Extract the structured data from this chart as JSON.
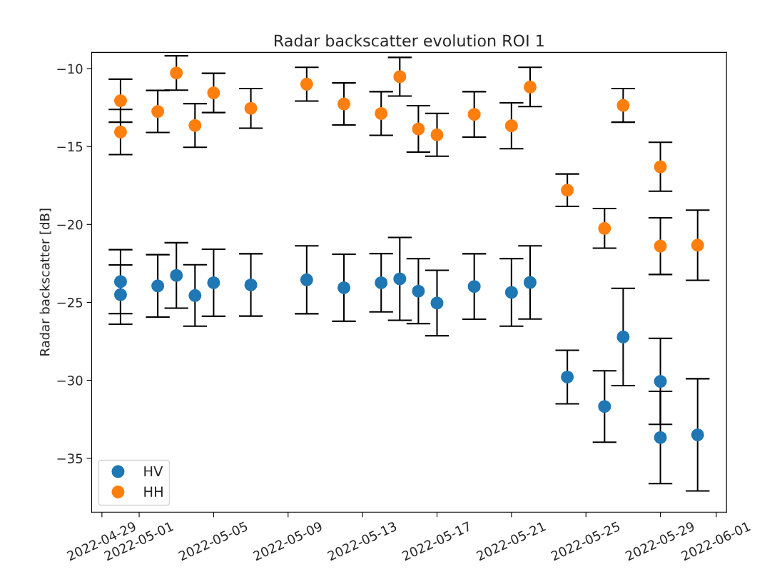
{
  "chart_data": {
    "type": "scatter",
    "title": "Radar backscatter evolution ROI 1",
    "ylabel": "Radar backscatter [dB]",
    "x": [
      "2022-04-30",
      "2022-04-30",
      "2022-05-02",
      "2022-05-03",
      "2022-05-04",
      "2022-05-05",
      "2022-05-07",
      "2022-05-10",
      "2022-05-12",
      "2022-05-14",
      "2022-05-15",
      "2022-05-16",
      "2022-05-17",
      "2022-05-19",
      "2022-05-21",
      "2022-05-22",
      "2022-05-24",
      "2022-05-26",
      "2022-05-27",
      "2022-05-29",
      "2022-05-29",
      "2022-05-31"
    ],
    "series": [
      {
        "name": "HV",
        "color": "#1f77b4",
        "values": [
          -23.67,
          -24.5,
          -23.94,
          -23.27,
          -24.56,
          -23.74,
          -23.88,
          -23.55,
          -24.06,
          -23.74,
          -23.49,
          -24.28,
          -25.04,
          -23.98,
          -24.36,
          -23.72,
          -29.79,
          -31.68,
          -27.22,
          -30.07,
          -33.67,
          -33.5
        ],
        "errors": [
          2.05,
          1.9,
          2.0,
          2.1,
          1.97,
          2.15,
          2.0,
          2.18,
          2.15,
          1.87,
          2.66,
          2.08,
          2.1,
          2.1,
          2.17,
          2.35,
          1.72,
          2.29,
          3.12,
          2.76,
          2.96,
          3.6
        ]
      },
      {
        "name": "HH",
        "color": "#ff7f0e",
        "values": [
          -12.06,
          -14.07,
          -12.75,
          -10.28,
          -13.65,
          -11.56,
          -12.55,
          -11.0,
          -12.27,
          -12.88,
          -10.52,
          -13.87,
          -14.25,
          -12.94,
          -13.67,
          -11.18,
          -17.8,
          -20.25,
          -12.36,
          -16.3,
          -21.39,
          -21.33
        ],
        "errors": [
          1.38,
          1.45,
          1.35,
          1.1,
          1.4,
          1.26,
          1.27,
          1.08,
          1.35,
          1.4,
          1.24,
          1.49,
          1.37,
          1.46,
          1.47,
          1.26,
          1.04,
          1.27,
          1.08,
          1.57,
          1.82,
          2.25
        ]
      }
    ],
    "xlim": [
      "2022-04-28T10:48",
      "2022-06-01T13:12"
    ],
    "xticks": [
      "2022-04-29",
      "2022-05-01",
      "2022-05-05",
      "2022-05-09",
      "2022-05-13",
      "2022-05-17",
      "2022-05-21",
      "2022-05-25",
      "2022-05-29",
      "2022-06-01"
    ],
    "ylim": [
      -38.46,
      -8.96
    ],
    "yticks": [
      -35,
      -30,
      -25,
      -20,
      -15,
      -10
    ],
    "legend": "bottom left",
    "marker": "circle"
  }
}
